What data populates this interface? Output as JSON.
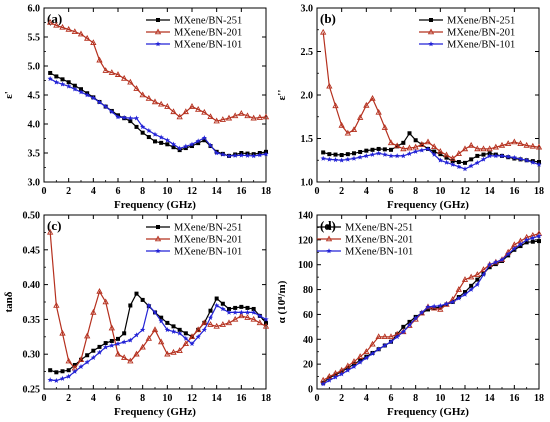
{
  "chart_data": [
    {
      "type": "line",
      "panel_label": "(a)",
      "xlabel": "Frequency (GHz)",
      "ylabel": "ε'",
      "xlim": [
        0,
        18
      ],
      "ylim": [
        3.0,
        6.0
      ],
      "xticks": [
        0,
        2,
        4,
        6,
        8,
        10,
        12,
        14,
        16,
        18
      ],
      "xtick_labels": [
        "0",
        "2",
        "4",
        "6",
        "8",
        "10",
        "12",
        "14",
        "16",
        "18"
      ],
      "yticks": [
        3.0,
        3.5,
        4.0,
        4.5,
        5.0,
        5.5,
        6.0
      ],
      "ytick_labels": [
        "3.0",
        "3.5",
        "4.0",
        "4.5",
        "5.0",
        "5.5",
        "6.0"
      ],
      "legend_position": "top-right",
      "series": [
        {
          "name": "MXene/BN-251",
          "color": "#000000",
          "marker": "square",
          "x": [
            0.5,
            1,
            2,
            3,
            4,
            5,
            6,
            7,
            7.5,
            8,
            9,
            10,
            11,
            12,
            13,
            14,
            15,
            16,
            17,
            18
          ],
          "y": [
            4.88,
            4.82,
            4.72,
            4.6,
            4.46,
            4.3,
            4.15,
            4.05,
            3.95,
            3.85,
            3.7,
            3.65,
            3.55,
            3.62,
            3.72,
            3.52,
            3.45,
            3.5,
            3.48,
            3.52
          ]
        },
        {
          "name": "MXene/BN-201",
          "color": "#b5301e",
          "marker": "triangle",
          "x": [
            0.5,
            1,
            2,
            3,
            4,
            4.5,
            5,
            6,
            7,
            8,
            9,
            10,
            11,
            12,
            13,
            14,
            15,
            16,
            17,
            18
          ],
          "y": [
            5.75,
            5.7,
            5.63,
            5.55,
            5.4,
            5.1,
            4.92,
            4.85,
            4.72,
            4.5,
            4.38,
            4.3,
            4.12,
            4.3,
            4.2,
            4.05,
            4.1,
            4.18,
            4.1,
            4.12
          ]
        },
        {
          "name": "MXene/BN-101",
          "color": "#2323d6",
          "marker": "star",
          "x": [
            0.5,
            1,
            2,
            3,
            4,
            5,
            6,
            7,
            7.5,
            8,
            9,
            10,
            11,
            12,
            13,
            14,
            15,
            16,
            17,
            18
          ],
          "y": [
            4.78,
            4.72,
            4.65,
            4.55,
            4.45,
            4.3,
            4.12,
            4.1,
            4.1,
            3.95,
            3.82,
            3.72,
            3.58,
            3.65,
            3.76,
            3.5,
            3.45,
            3.46,
            3.45,
            3.48
          ]
        }
      ]
    },
    {
      "type": "line",
      "panel_label": "(b)",
      "xlabel": "Frequency (GHz)",
      "ylabel": "ε''",
      "xlim": [
        0,
        18
      ],
      "ylim": [
        1.0,
        3.0
      ],
      "xticks": [
        0,
        2,
        4,
        6,
        8,
        10,
        12,
        14,
        16,
        18
      ],
      "xtick_labels": [
        "0",
        "2",
        "4",
        "6",
        "8",
        "10",
        "12",
        "14",
        "16",
        "18"
      ],
      "yticks": [
        1.0,
        1.5,
        2.0,
        2.5,
        3.0
      ],
      "ytick_labels": [
        "1.0",
        "1.5",
        "2.0",
        "2.5",
        "3.0"
      ],
      "legend_position": "top-right",
      "series": [
        {
          "name": "MXene/BN-251",
          "color": "#000000",
          "marker": "square",
          "x": [
            0.5,
            1,
            2,
            3,
            4,
            5,
            6,
            7,
            7.5,
            8,
            9,
            10,
            11,
            12,
            13,
            14,
            15,
            16,
            17,
            18
          ],
          "y": [
            1.34,
            1.32,
            1.31,
            1.33,
            1.36,
            1.38,
            1.37,
            1.45,
            1.56,
            1.48,
            1.38,
            1.32,
            1.24,
            1.22,
            1.3,
            1.33,
            1.3,
            1.27,
            1.25,
            1.23
          ]
        },
        {
          "name": "MXene/BN-201",
          "color": "#b5301e",
          "marker": "triangle",
          "x": [
            0.5,
            1,
            2,
            2.5,
            3,
            4,
            4.5,
            5,
            6,
            7,
            8,
            9,
            10,
            11,
            12,
            12.5,
            13,
            14,
            15,
            16,
            17,
            18
          ],
          "y": [
            2.72,
            2.1,
            1.65,
            1.56,
            1.6,
            1.88,
            1.96,
            1.8,
            1.45,
            1.38,
            1.4,
            1.46,
            1.35,
            1.27,
            1.38,
            1.42,
            1.38,
            1.38,
            1.42,
            1.46,
            1.42,
            1.4
          ]
        },
        {
          "name": "MXene/BN-101",
          "color": "#2323d6",
          "marker": "star",
          "x": [
            0.5,
            1,
            2,
            3,
            4,
            5,
            6,
            7,
            8,
            9,
            10,
            11,
            12,
            13,
            14,
            15,
            16,
            17,
            18
          ],
          "y": [
            1.27,
            1.26,
            1.25,
            1.27,
            1.3,
            1.33,
            1.3,
            1.3,
            1.35,
            1.38,
            1.25,
            1.2,
            1.15,
            1.22,
            1.3,
            1.3,
            1.28,
            1.25,
            1.2
          ]
        }
      ]
    },
    {
      "type": "line",
      "panel_label": "(c)",
      "xlabel": "Frequency (GHz)",
      "ylabel": "tanδ",
      "xlim": [
        0,
        18
      ],
      "ylim": [
        0.25,
        0.5
      ],
      "xticks": [
        0,
        2,
        4,
        6,
        8,
        10,
        12,
        14,
        16,
        18
      ],
      "xtick_labels": [
        "0",
        "2",
        "4",
        "6",
        "8",
        "10",
        "12",
        "14",
        "16",
        "18"
      ],
      "yticks": [
        0.25,
        0.3,
        0.35,
        0.4,
        0.45,
        0.5
      ],
      "ytick_labels": [
        "0.25",
        "0.30",
        "0.35",
        "0.40",
        "0.45",
        "0.50"
      ],
      "legend_position": "top-right",
      "series": [
        {
          "name": "MXene/BN-251",
          "color": "#000000",
          "marker": "square",
          "x": [
            0.5,
            1,
            2,
            3,
            4,
            5,
            6,
            6.5,
            7,
            7.5,
            8,
            9,
            10,
            11,
            12,
            13,
            14,
            15,
            16,
            17,
            18
          ],
          "y": [
            0.277,
            0.274,
            0.277,
            0.292,
            0.305,
            0.316,
            0.322,
            0.33,
            0.37,
            0.387,
            0.378,
            0.36,
            0.345,
            0.335,
            0.325,
            0.345,
            0.38,
            0.365,
            0.368,
            0.365,
            0.345
          ]
        },
        {
          "name": "MXene/BN-201",
          "color": "#b5301e",
          "marker": "triangle",
          "x": [
            0.5,
            1,
            2,
            2.5,
            3,
            4,
            4.5,
            5,
            6,
            7,
            8,
            9,
            10,
            11,
            12,
            13,
            14,
            15,
            16,
            17,
            18
          ],
          "y": [
            0.475,
            0.37,
            0.29,
            0.28,
            0.292,
            0.36,
            0.39,
            0.375,
            0.3,
            0.29,
            0.31,
            0.335,
            0.3,
            0.305,
            0.325,
            0.345,
            0.34,
            0.345,
            0.355,
            0.35,
            0.34
          ]
        },
        {
          "name": "MXene/BN-101",
          "color": "#2323d6",
          "marker": "star",
          "x": [
            0.5,
            1,
            2,
            3,
            4,
            5,
            6,
            7,
            8,
            8.5,
            9,
            10,
            11,
            12,
            13,
            14,
            15,
            16,
            17,
            18
          ],
          "y": [
            0.263,
            0.262,
            0.268,
            0.282,
            0.295,
            0.31,
            0.315,
            0.32,
            0.335,
            0.37,
            0.36,
            0.335,
            0.33,
            0.315,
            0.335,
            0.37,
            0.36,
            0.36,
            0.36,
            0.35
          ]
        }
      ]
    },
    {
      "type": "line",
      "panel_label": "(d)",
      "xlabel": "Frequency (GHz)",
      "ylabel": "α (10⁸/m)",
      "xlim": [
        0,
        18
      ],
      "ylim": [
        0,
        140
      ],
      "xticks": [
        0,
        2,
        4,
        6,
        8,
        10,
        12,
        14,
        16,
        18
      ],
      "xtick_labels": [
        "0",
        "2",
        "4",
        "6",
        "8",
        "10",
        "12",
        "14",
        "16",
        "18"
      ],
      "yticks": [
        0,
        20,
        40,
        60,
        80,
        100,
        120,
        140
      ],
      "ytick_labels": [
        "0",
        "20",
        "40",
        "60",
        "80",
        "100",
        "120",
        "140"
      ],
      "legend_position": "top-left",
      "series": [
        {
          "name": "MXene/BN-251",
          "color": "#000000",
          "marker": "square",
          "x": [
            0.5,
            1,
            2,
            3,
            4,
            5,
            6,
            7,
            8,
            9,
            10,
            11,
            12,
            13,
            14,
            15,
            16,
            17,
            18
          ],
          "y": [
            5,
            9,
            14,
            20,
            26,
            32,
            38,
            50,
            58,
            64,
            66,
            70,
            78,
            88,
            98,
            103,
            112,
            118,
            119
          ]
        },
        {
          "name": "MXene/BN-201",
          "color": "#b5301e",
          "marker": "triangle",
          "x": [
            0.5,
            1,
            2,
            3,
            4,
            5,
            6,
            7,
            8,
            9,
            10,
            11,
            12,
            13,
            14,
            15,
            16,
            17,
            18
          ],
          "y": [
            7,
            10,
            15,
            22,
            30,
            42,
            42,
            46,
            56,
            66,
            64,
            72,
            88,
            92,
            100,
            104,
            116,
            122,
            125
          ]
        },
        {
          "name": "MXene/BN-101",
          "color": "#2323d6",
          "marker": "star",
          "x": [
            0.5,
            1,
            2,
            3,
            4,
            5,
            6,
            7,
            8,
            9,
            10,
            11,
            12,
            13,
            14,
            15,
            16,
            17,
            18
          ],
          "y": [
            4,
            7,
            12,
            18,
            25,
            32,
            38,
            46,
            57,
            66,
            67,
            70,
            76,
            84,
            100,
            104,
            113,
            120,
            123
          ]
        }
      ]
    }
  ]
}
